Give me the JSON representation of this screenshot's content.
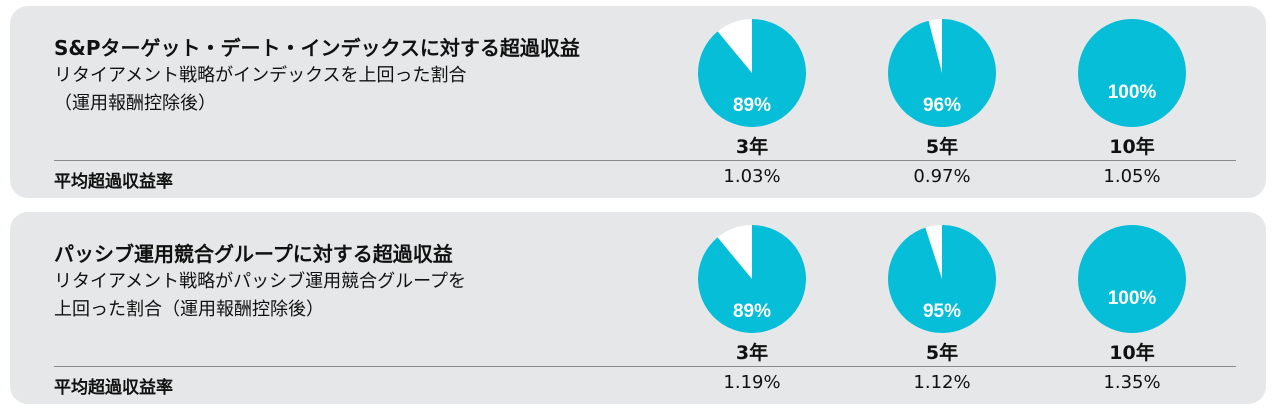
{
  "colors": {
    "accent": "#06bed7",
    "remainder": "#ffffff",
    "panel_bg": "#e6e7e8",
    "pie_label": "#ffffff"
  },
  "chart_data": [
    {
      "type": "pie",
      "title": "S&Pターゲット・デート・インデックスに対する超過収益",
      "subtitle_lines": [
        "リタイアメント戦略がインデックスを上回った割合",
        "（運用報酬控除後）"
      ],
      "categories": [
        "3年",
        "5年",
        "10年"
      ],
      "values": [
        89,
        96,
        100
      ],
      "value_labels": [
        "89%",
        "96%",
        "100%"
      ],
      "avg_label": "平均超過収益率",
      "avg_values": [
        "1.03%",
        "0.97%",
        "1.05%"
      ]
    },
    {
      "type": "pie",
      "title": "パッシブ運用競合グループに対する超過収益",
      "subtitle_lines": [
        "リタイアメント戦略がパッシブ運用競合グループを",
        "上回った割合（運用報酬控除後）"
      ],
      "categories": [
        "3年",
        "5年",
        "10年"
      ],
      "values": [
        89,
        95,
        100
      ],
      "value_labels": [
        "89%",
        "95%",
        "100%"
      ],
      "avg_label": "平均超過収益率",
      "avg_values": [
        "1.19%",
        "1.12%",
        "1.35%"
      ]
    }
  ]
}
